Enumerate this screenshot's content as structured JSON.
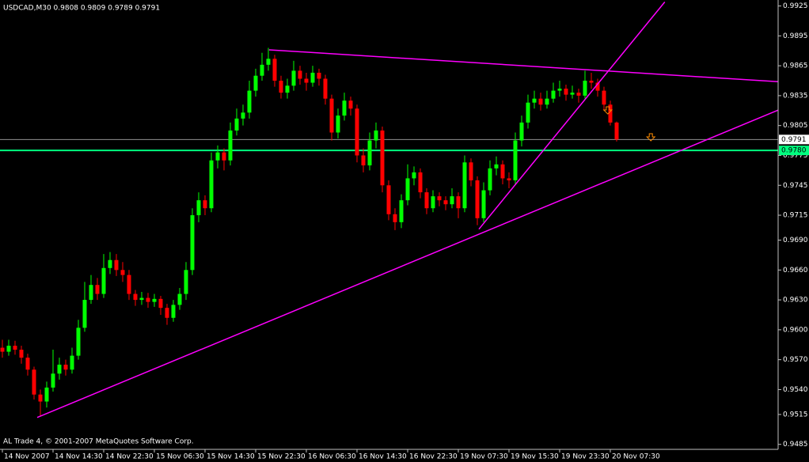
{
  "chart_data": {
    "type": "candlestick",
    "title": "USDCAD,M30  0.9808 0.9809 0.9789 0.9791",
    "footer": "AL Trade 4, © 2001-2007 MetaQuotes Software Corp.",
    "bull_color": "#00ff00",
    "bear_color": "#ff0000",
    "background": "#000000",
    "x": [
      0,
      1,
      2,
      3,
      4,
      5,
      6,
      7,
      8,
      9,
      10,
      11,
      12,
      13,
      14,
      15,
      16,
      17,
      18,
      19,
      20,
      21,
      22,
      23,
      24,
      25,
      26,
      27,
      28,
      29,
      30,
      31,
      32,
      33,
      34,
      35,
      36,
      37,
      38,
      39,
      40,
      41,
      42,
      43,
      44,
      45,
      46,
      47,
      48,
      49,
      50,
      51,
      52,
      53,
      54,
      55,
      56,
      57,
      58,
      59,
      60,
      61,
      62,
      63,
      64,
      65,
      66,
      67,
      68,
      69,
      70,
      71,
      72,
      73,
      74,
      75,
      76,
      77,
      78,
      79,
      80,
      81,
      82,
      83,
      84,
      85,
      86,
      87,
      88,
      89,
      90,
      91,
      92,
      93,
      94,
      95,
      96,
      97
    ],
    "open": [
      0.9582,
      0.9578,
      0.9584,
      0.958,
      0.9572,
      0.956,
      0.9535,
      0.9528,
      0.9542,
      0.9556,
      0.9565,
      0.956,
      0.9574,
      0.9602,
      0.963,
      0.9645,
      0.9636,
      0.9662,
      0.967,
      0.966,
      0.9655,
      0.9636,
      0.963,
      0.9632,
      0.9628,
      0.9631,
      0.9622,
      0.9612,
      0.9625,
      0.9636,
      0.966,
      0.9715,
      0.973,
      0.9722,
      0.977,
      0.9778,
      0.977,
      0.98,
      0.9812,
      0.9818,
      0.984,
      0.9855,
      0.9866,
      0.9872,
      0.985,
      0.9838,
      0.9845,
      0.986,
      0.9852,
      0.9848,
      0.9858,
      0.9852,
      0.9832,
      0.9798,
      0.9815,
      0.983,
      0.9822,
      0.9775,
      0.9765,
      0.979,
      0.98,
      0.9745,
      0.9716,
      0.9708,
      0.973,
      0.9752,
      0.9758,
      0.9738,
      0.9722,
      0.9734,
      0.973,
      0.9726,
      0.9734,
      0.9722,
      0.9768,
      0.975,
      0.9712,
      0.974,
      0.9762,
      0.9766,
      0.9752,
      0.975,
      0.979,
      0.9808,
      0.9828,
      0.9832,
      0.9826,
      0.9832,
      0.984,
      0.9842,
      0.9836,
      0.9838,
      0.9835,
      0.985,
      0.9848,
      0.984,
      0.9826,
      0.9808
    ],
    "high": [
      0.959,
      0.959,
      0.9589,
      0.9584,
      0.9576,
      0.9563,
      0.954,
      0.9548,
      0.958,
      0.9572,
      0.957,
      0.9582,
      0.961,
      0.9648,
      0.9655,
      0.9652,
      0.9676,
      0.9678,
      0.9676,
      0.9668,
      0.966,
      0.964,
      0.9638,
      0.9637,
      0.9636,
      0.9634,
      0.9626,
      0.963,
      0.9642,
      0.9668,
      0.9722,
      0.9738,
      0.9735,
      0.9778,
      0.9785,
      0.9782,
      0.9808,
      0.9822,
      0.9826,
      0.985,
      0.9862,
      0.9878,
      0.9883,
      0.9876,
      0.9855,
      0.9852,
      0.987,
      0.9865,
      0.9858,
      0.9865,
      0.9862,
      0.9856,
      0.9836,
      0.9822,
      0.9838,
      0.9834,
      0.9826,
      0.9782,
      0.9798,
      0.9808,
      0.9804,
      0.975,
      0.9722,
      0.9736,
      0.9766,
      0.9764,
      0.9762,
      0.9742,
      0.974,
      0.9738,
      0.9734,
      0.9742,
      0.9738,
      0.9775,
      0.9772,
      0.9754,
      0.9748,
      0.977,
      0.9774,
      0.977,
      0.9758,
      0.9798,
      0.9815,
      0.9836,
      0.984,
      0.9838,
      0.984,
      0.9848,
      0.985,
      0.9846,
      0.9845,
      0.9842,
      0.986,
      0.9858,
      0.9852,
      0.9844,
      0.983,
      0.9809
    ],
    "low": [
      0.9572,
      0.9574,
      0.9575,
      0.9566,
      0.9554,
      0.953,
      0.9513,
      0.9522,
      0.9538,
      0.955,
      0.9554,
      0.9556,
      0.957,
      0.9598,
      0.9626,
      0.963,
      0.9632,
      0.9656,
      0.9654,
      0.9648,
      0.963,
      0.9624,
      0.9625,
      0.9622,
      0.9623,
      0.9615,
      0.9605,
      0.9608,
      0.962,
      0.963,
      0.9655,
      0.9708,
      0.9715,
      0.9718,
      0.9762,
      0.976,
      0.9765,
      0.9795,
      0.9805,
      0.9812,
      0.9834,
      0.985,
      0.986,
      0.9844,
      0.9832,
      0.9832,
      0.984,
      0.9846,
      0.984,
      0.9844,
      0.9845,
      0.9826,
      0.979,
      0.9792,
      0.981,
      0.9815,
      0.9768,
      0.9758,
      0.976,
      0.9782,
      0.9738,
      0.971,
      0.97,
      0.9702,
      0.9725,
      0.9745,
      0.9732,
      0.9716,
      0.9718,
      0.9724,
      0.972,
      0.9722,
      0.9712,
      0.9718,
      0.9744,
      0.9705,
      0.9708,
      0.9735,
      0.9755,
      0.9746,
      0.9742,
      0.9746,
      0.9784,
      0.9802,
      0.9822,
      0.982,
      0.9822,
      0.9828,
      0.9834,
      0.983,
      0.9832,
      0.9828,
      0.9832,
      0.9842,
      0.9834,
      0.982,
      0.9805,
      0.9789
    ],
    "close": [
      0.9578,
      0.9584,
      0.958,
      0.9572,
      0.956,
      0.9535,
      0.9528,
      0.9542,
      0.9556,
      0.9565,
      0.956,
      0.9574,
      0.9602,
      0.963,
      0.9645,
      0.9636,
      0.9662,
      0.967,
      0.966,
      0.9655,
      0.9636,
      0.963,
      0.9632,
      0.9628,
      0.9631,
      0.9622,
      0.9612,
      0.9625,
      0.9636,
      0.966,
      0.9715,
      0.973,
      0.9722,
      0.977,
      0.9778,
      0.977,
      0.98,
      0.9812,
      0.9818,
      0.984,
      0.9855,
      0.9866,
      0.9872,
      0.985,
      0.9838,
      0.9845,
      0.986,
      0.9852,
      0.9848,
      0.9858,
      0.9852,
      0.9832,
      0.9798,
      0.9815,
      0.983,
      0.9822,
      0.9775,
      0.9765,
      0.979,
      0.98,
      0.9745,
      0.9716,
      0.9708,
      0.973,
      0.9752,
      0.9758,
      0.9738,
      0.9722,
      0.9734,
      0.973,
      0.9726,
      0.9734,
      0.9722,
      0.9768,
      0.975,
      0.9712,
      0.974,
      0.9762,
      0.9766,
      0.9752,
      0.975,
      0.979,
      0.9808,
      0.9828,
      0.9832,
      0.9826,
      0.9832,
      0.984,
      0.9842,
      0.9836,
      0.9838,
      0.9835,
      0.985,
      0.9848,
      0.984,
      0.9826,
      0.9808,
      0.9791
    ],
    "xlim": [
      -0.375,
      122.5
    ],
    "xticks": [
      {
        "value": 0,
        "label": "14 Nov 2007"
      },
      {
        "value": 8,
        "label": "14 Nov 14:30"
      },
      {
        "value": 16,
        "label": "14 Nov 22:30"
      },
      {
        "value": 24,
        "label": "15 Nov 06:30"
      },
      {
        "value": 32,
        "label": "15 Nov 14:30"
      },
      {
        "value": 40,
        "label": "15 Nov 22:30"
      },
      {
        "value": 48,
        "label": "16 Nov 06:30"
      },
      {
        "value": 56,
        "label": "16 Nov 14:30"
      },
      {
        "value": 64,
        "label": "16 Nov 22:30"
      },
      {
        "value": 72,
        "label": "19 Nov 07:30"
      },
      {
        "value": 80,
        "label": "19 Nov 15:30"
      },
      {
        "value": 88,
        "label": "19 Nov 23:30"
      },
      {
        "value": 96,
        "label": "20 Nov 07:30"
      }
    ],
    "ylim": [
      0.948,
      0.9931
    ],
    "yticks": [
      0.9925,
      0.9895,
      0.9865,
      0.9835,
      0.9805,
      0.9775,
      0.9745,
      0.9715,
      {
        "value": 0.969,
        "label": "0.9690"
      },
      {
        "value": 0.966,
        "label": "0.9660"
      },
      {
        "value": 0.963,
        "label": "0.9630"
      },
      {
        "value": 0.96,
        "label": "0.9600"
      },
      {
        "value": 0.957,
        "label": "0.9570"
      },
      {
        "value": 0.954,
        "label": "0.9540"
      },
      0.9515,
      0.9485
    ],
    "bid_line": 0.9791,
    "bid_color": "#909090",
    "hline": {
      "value": 0.978,
      "label": "0.9780"
    },
    "hline_color": "#00ff7f",
    "trendline_color": "#ff00ff",
    "trendlines": [
      {
        "x1": 5.5,
        "y1": 0.9512,
        "x2": 126.1,
        "y2": 0.983
      },
      {
        "x1": 42.1,
        "y1": 0.9881,
        "x2": 122.5,
        "y2": 0.9849
      },
      {
        "x1": 75.25,
        "y1": 0.9701,
        "x2": 104.6,
        "y2": 0.9929
      }
    ],
    "arrow_color": "#ff8c00",
    "arrows": [
      {
        "x": 102.4,
        "price": 0.9792
      },
      {
        "x": 95.6,
        "price": 0.9819
      }
    ]
  }
}
